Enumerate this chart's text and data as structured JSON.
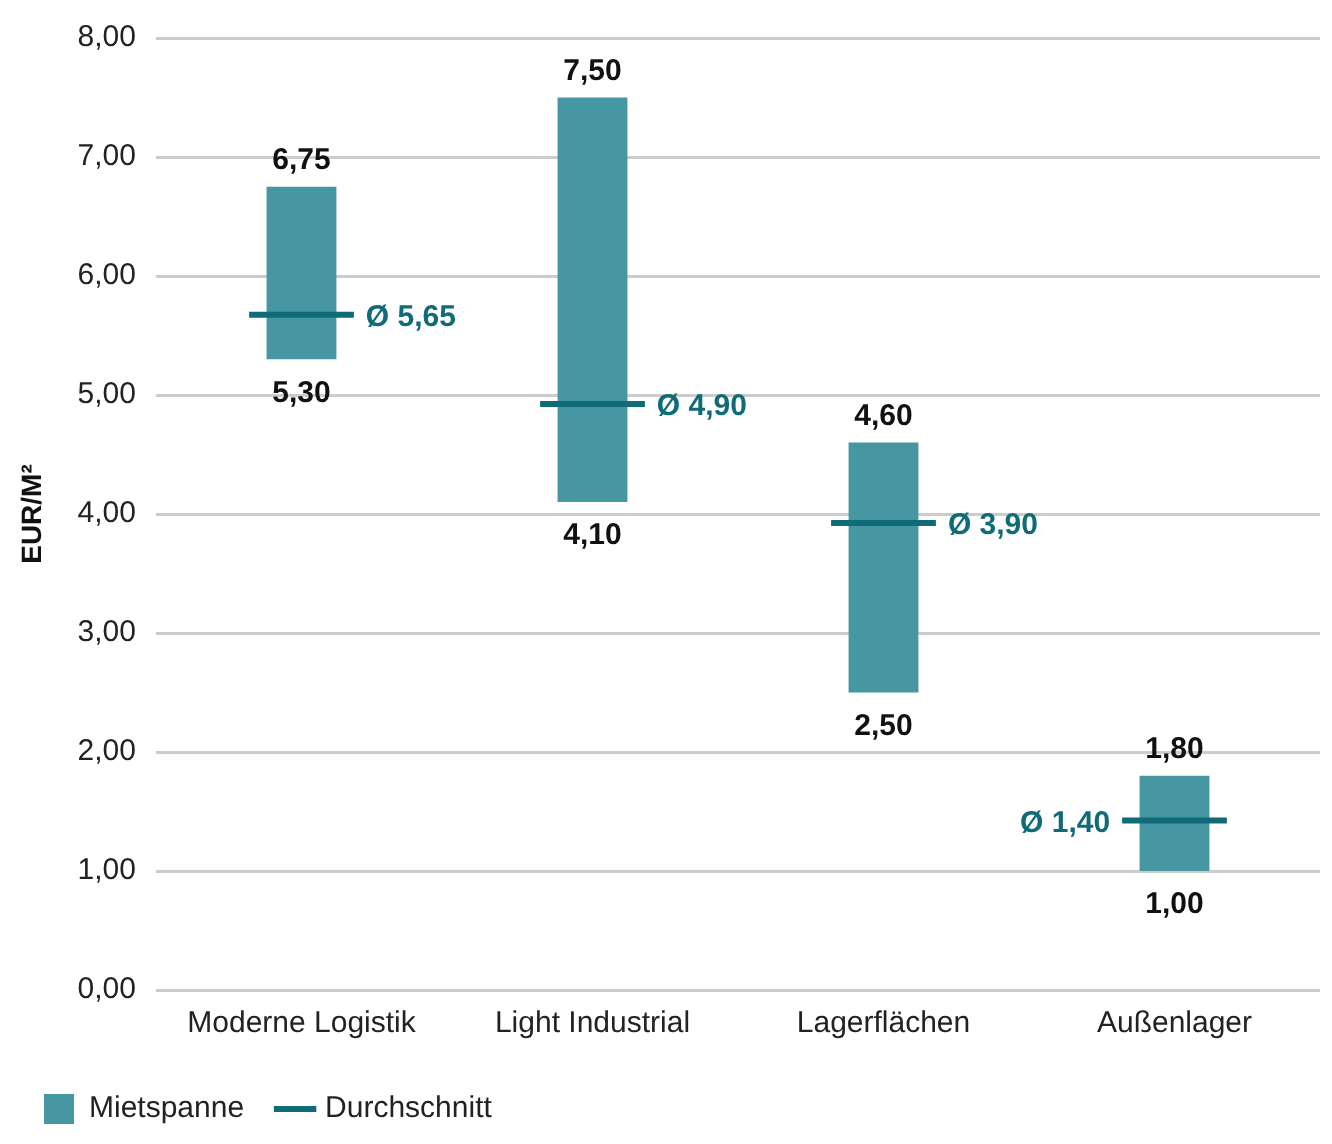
{
  "chart_data": {
    "type": "bar",
    "ylabel": "EUR/M²",
    "categories": [
      "Moderne Logistik",
      "Light Industrial",
      "Lagerflächen",
      "Außenlager"
    ],
    "series": [
      {
        "name": "Mietspanne",
        "color": "#4797a3",
        "base": [
          5.3,
          4.1,
          2.5,
          1.0
        ],
        "values": [
          1.45,
          3.4,
          2.1,
          0.8
        ]
      },
      {
        "name": "Durchschnitt",
        "type": "bar",
        "color": "#0f6b78",
        "base": [
          5.65,
          4.9,
          3.9,
          1.4
        ],
        "values": [
          0,
          0,
          0,
          0
        ]
      }
    ],
    "annotations": [
      {
        "text": "6,75",
        "x": "Moderne Logistik",
        "y": 6.75
      },
      {
        "text": "5,30",
        "x": "Moderne Logistik",
        "y": 5.3
      },
      {
        "text": "7,50",
        "x": "Light Industrial",
        "y": 7.5
      },
      {
        "text": "4,10",
        "x": "Light Industrial",
        "y": 4.1
      },
      {
        "text": "4,60",
        "x": "Lagerflächen",
        "y": 4.6
      },
      {
        "text": "2,50",
        "x": "Lagerflächen",
        "y": 2.5
      },
      {
        "text": "1,80",
        "x": "Außenlager",
        "y": 1.8
      },
      {
        "text": "1,00",
        "x": "Außenlager",
        "y": 1.0
      },
      {
        "text": "Ø 5,65",
        "x": "Moderne Logistik",
        "y": 5.65
      },
      {
        "text": "Ø 4,90",
        "x": "Light Industrial",
        "y": 4.9
      },
      {
        "text": "Ø 3,90",
        "x": "Lagerflächen",
        "y": 3.9
      },
      {
        "text": "Ø 1,40",
        "x": "Außenlager",
        "y": 1.4
      }
    ],
    "ylim": [
      0,
      8
    ],
    "yticks": [
      {
        "value": 0,
        "label": "0,00"
      },
      {
        "value": 1,
        "label": "1,00"
      },
      {
        "value": 2,
        "label": "2,00"
      },
      {
        "value": 3,
        "label": "3,00"
      },
      {
        "value": 4,
        "label": "4,00"
      },
      {
        "value": 5,
        "label": "5,00"
      },
      {
        "value": 6,
        "label": "6,00"
      },
      {
        "value": 7,
        "label": "7,00"
      },
      {
        "value": 8,
        "label": "8,00"
      }
    ],
    "grid": "y",
    "legend": "bottom left"
  }
}
